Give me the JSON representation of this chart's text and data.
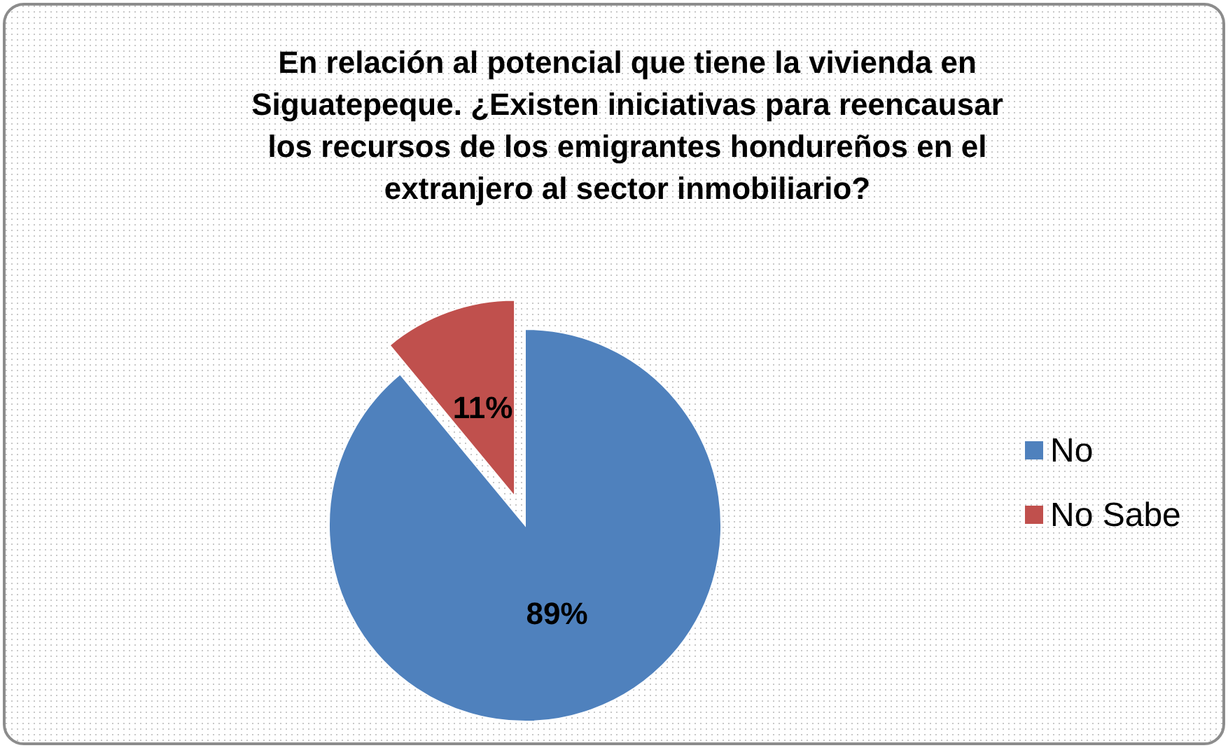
{
  "chart_data": {
    "type": "pie",
    "title": "En relación al potencial que tiene la vivienda en\nSiguatepeque. ¿Existen iniciativas para reencausar\nlos recursos de los emigrantes hondureños en el\nextranjero al sector inmobiliario?",
    "categories": [
      "No",
      "No Sabe"
    ],
    "values": [
      89,
      11
    ],
    "colors": [
      "#4f81bd",
      "#c0504d"
    ],
    "value_labels": [
      "89%",
      "11%"
    ],
    "legend": "right"
  }
}
